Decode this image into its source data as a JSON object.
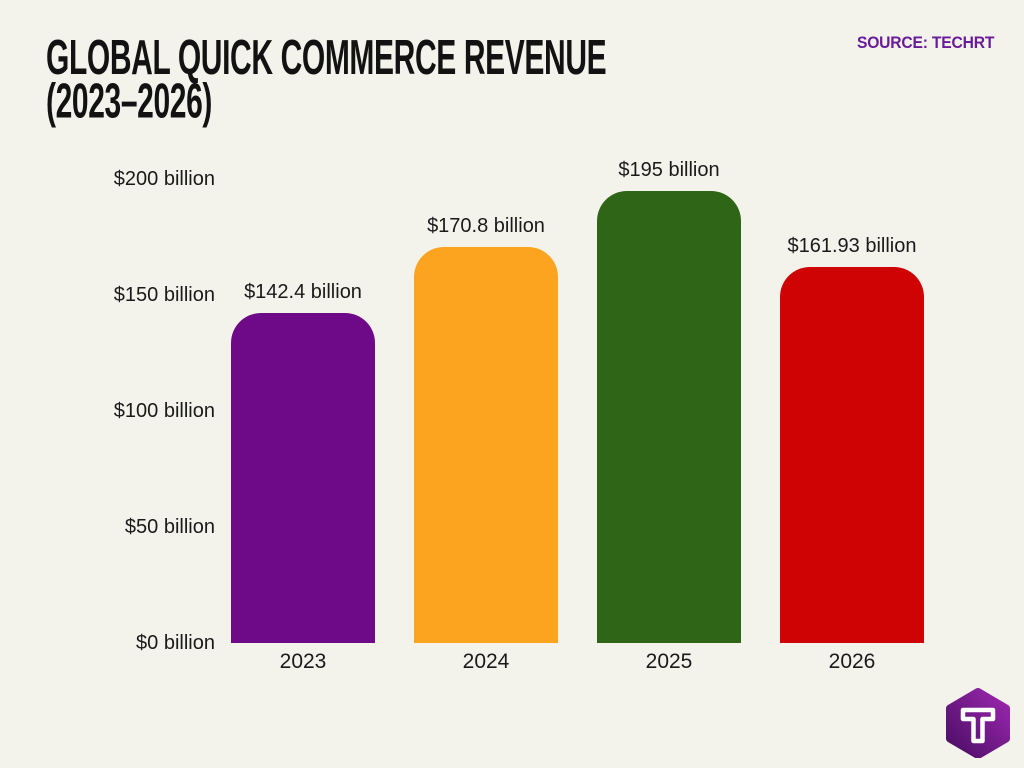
{
  "header": {
    "title_line1": "GLOBAL QUICK COMMERCE REVENUE",
    "title_line2": "(2023–2026)",
    "source": "SOURCE: TECHRT"
  },
  "logo": {
    "name": "techrt-hexagon-logo",
    "letter": "T",
    "color_light": "#9c27b0",
    "color_dark": "#4a0e63"
  },
  "colors": {
    "background": "#f3f3ec",
    "title_text": "#121212",
    "source_text": "#6a1b9a",
    "axis_text": "#1a1a1a"
  },
  "chart_data": {
    "type": "bar",
    "title": "GLOBAL QUICK COMMERCE REVENUE (2023–2026)",
    "source": "SOURCE: TECHRT",
    "categories": [
      "2023",
      "2024",
      "2025",
      "2026"
    ],
    "values": [
      142.4,
      170.8,
      195,
      161.93
    ],
    "value_labels": [
      "$142.4 billion",
      "$170.8 billion",
      "$195 billion",
      "$161.93 billion"
    ],
    "bar_colors": [
      "#6e0a87",
      "#fca41f",
      "#2f6517",
      "#cf0303"
    ],
    "y_ticks": [
      {
        "value": 0,
        "label": "$0 billion"
      },
      {
        "value": 50,
        "label": "$50 billion"
      },
      {
        "value": 100,
        "label": "$100 billion"
      },
      {
        "value": 150,
        "label": "$150 billion"
      },
      {
        "value": 200,
        "label": "$200 billion"
      }
    ],
    "ylim": [
      0,
      200
    ],
    "xlabel": "",
    "ylabel": "",
    "unit": "USD billions",
    "grid": "off",
    "legend": "none"
  }
}
